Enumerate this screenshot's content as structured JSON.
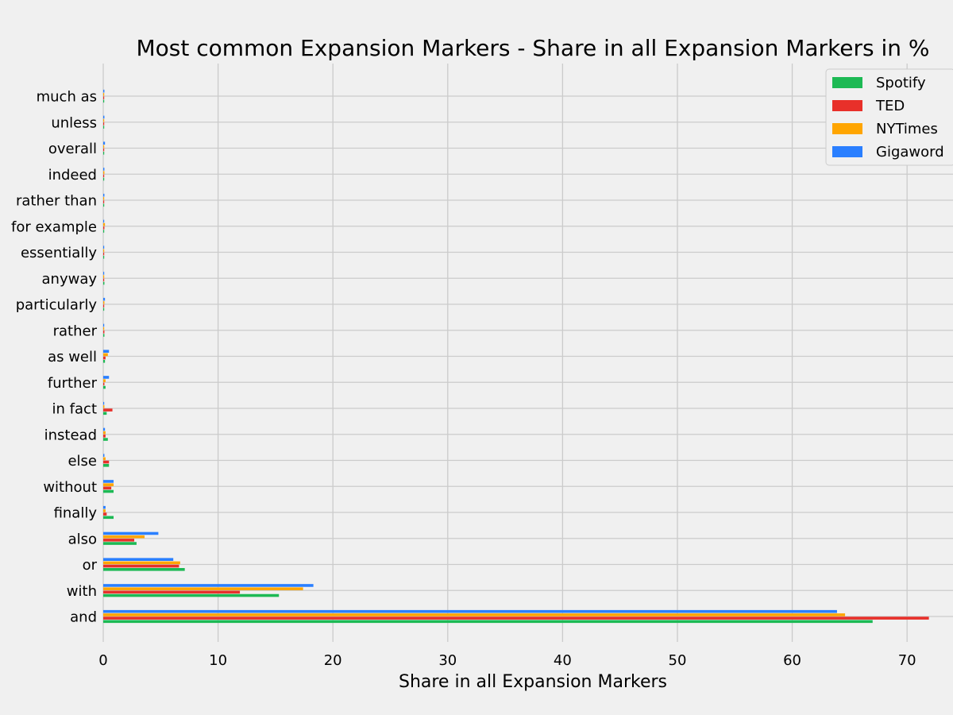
{
  "chart_data": {
    "type": "bar",
    "orientation": "horizontal",
    "title": "Most common Expansion Markers - Share in all Expansion Markers in %",
    "xlabel": "Share in all Expansion Markers",
    "ylabel": "",
    "xlim": [
      0,
      74
    ],
    "xticks": [
      "0",
      "10",
      "20",
      "30",
      "40",
      "50",
      "60",
      "70"
    ],
    "xtick_values": [
      0,
      10,
      20,
      30,
      40,
      50,
      60,
      70
    ],
    "grid": true,
    "legend_position": "top-right",
    "categories": [
      "and",
      "with",
      "or",
      "also",
      "finally",
      "without",
      "else",
      "instead",
      "in fact",
      "further",
      "as well",
      "rather",
      "particularly",
      "anyway",
      "essentially",
      "for example",
      "rather than",
      "indeed",
      "overall",
      "unless",
      "much as"
    ],
    "series": [
      {
        "name": "Spotify",
        "color": "#1db954",
        "values": [
          67.0,
          15.3,
          7.1,
          2.9,
          0.9,
          0.9,
          0.5,
          0.4,
          0.3,
          0.2,
          0.15,
          0.1,
          0.05,
          0.1,
          0.02,
          0.02,
          0.02,
          0.02,
          0.02,
          0.01,
          0.01
        ]
      },
      {
        "name": "TED",
        "color": "#e8302a",
        "values": [
          71.9,
          11.9,
          6.6,
          2.7,
          0.3,
          0.7,
          0.5,
          0.2,
          0.8,
          0.1,
          0.2,
          0.1,
          0.05,
          0.02,
          0.08,
          0.1,
          0.05,
          0.05,
          0.02,
          0.01,
          0.01
        ]
      },
      {
        "name": "NYTimes",
        "color": "#ffa500",
        "values": [
          64.6,
          17.4,
          6.7,
          3.6,
          0.2,
          0.9,
          0.2,
          0.2,
          0.1,
          0.2,
          0.4,
          0.05,
          0.1,
          0.02,
          0.02,
          0.15,
          0.08,
          0.1,
          0.05,
          0.02,
          0.02
        ]
      },
      {
        "name": "Gigaword",
        "color": "#2a7fff",
        "values": [
          63.9,
          18.3,
          6.1,
          4.8,
          0.2,
          0.9,
          0.1,
          0.15,
          0.05,
          0.5,
          0.5,
          0.05,
          0.15,
          0.02,
          0.02,
          0.05,
          0.1,
          0.1,
          0.15,
          0.1,
          0.1
        ]
      }
    ]
  }
}
